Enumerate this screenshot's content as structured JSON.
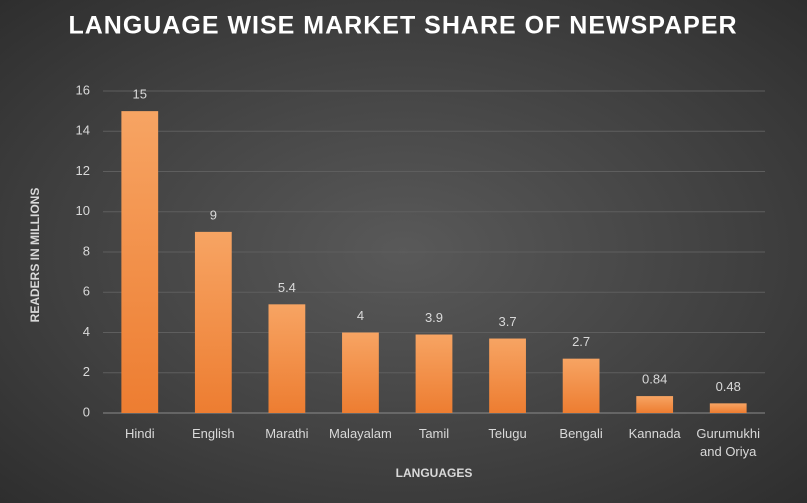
{
  "chart_data": {
    "type": "bar",
    "title": "LANGUAGE WISE MARKET SHARE OF NEWSPAPER",
    "x_label": "LANGUAGES",
    "y_label": "READERS IN MILLIONS",
    "categories": [
      "Hindi",
      "English",
      "Marathi",
      "Malayalam",
      "Tamil",
      "Telugu",
      "Bengali",
      "Kannada",
      "Gurumukhi and Oriya"
    ],
    "values": [
      15,
      9,
      5.4,
      4,
      3.9,
      3.7,
      2.7,
      0.84,
      0.48
    ],
    "color": "#ed7d31",
    "ylim": [
      0,
      16
    ],
    "yticks": [
      0,
      2,
      4,
      6,
      8,
      10,
      12,
      14,
      16
    ],
    "grid": true
  }
}
